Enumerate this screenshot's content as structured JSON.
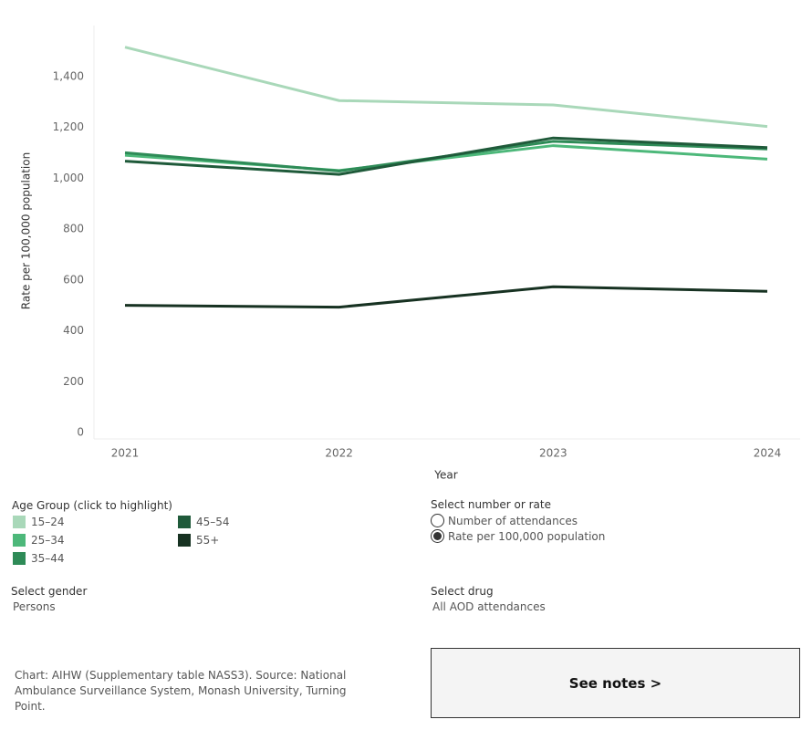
{
  "chart_data": {
    "type": "line",
    "y_label": "Rate per 100,000 population",
    "x_label": "Year",
    "categories": [
      "2021",
      "2022",
      "2023",
      "2024"
    ],
    "series": [
      {
        "name": "15–24",
        "color": "#a9d8b9",
        "values": [
          1515,
          1305,
          1288,
          1203
        ]
      },
      {
        "name": "25–34",
        "color": "#4db87a",
        "values": [
          1090,
          1030,
          1128,
          1075
        ]
      },
      {
        "name": "35–44",
        "color": "#2e8b57",
        "values": [
          1100,
          1028,
          1145,
          1115
        ]
      },
      {
        "name": "45–54",
        "color": "#1f5a3a",
        "values": [
          1067,
          1015,
          1158,
          1120
        ]
      },
      {
        "name": "55+",
        "color": "#173222",
        "values": [
          500,
          493,
          573,
          555
        ]
      }
    ],
    "ylim": [
      0,
      1600
    ],
    "yticks": [
      0,
      200,
      400,
      600,
      800,
      {
        "value": 1000,
        "label": "1,000"
      },
      {
        "value": 1200,
        "label": "1,200"
      },
      {
        "value": 1400,
        "label": "1,400"
      }
    ],
    "legend_title": "Age Group (click to highlight)"
  },
  "controls": {
    "measure": {
      "title": "Select number or rate",
      "options": [
        "Number of attendances",
        "Rate per 100,000 population"
      ],
      "selected": 1
    },
    "gender": {
      "title": "Select gender",
      "value": "Persons"
    },
    "drug": {
      "title": "Select drug",
      "value": "All AOD attendances"
    },
    "source": "Chart: AIHW (Supplementary table NASS3). Source: National Ambulance Surveillance System, Monash University, Turning Point.",
    "notes_button": "See notes >"
  }
}
